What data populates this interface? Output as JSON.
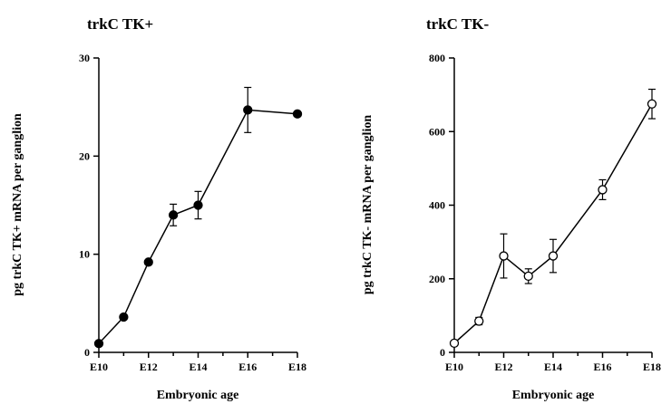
{
  "chart_data": [
    {
      "type": "line",
      "title": "trkC TK+",
      "xlabel": "Embryonic age",
      "ylabel": "pg trkC TK+ mRNA per ganglion",
      "x_tick_labels": [
        "E10",
        "E12",
        "E14",
        "E16",
        "E18"
      ],
      "x_ticks": [
        10,
        12,
        14,
        16,
        18
      ],
      "xlim": [
        10,
        18
      ],
      "ylim": [
        0,
        30
      ],
      "y_ticks": [
        0,
        10,
        20,
        30
      ],
      "marker": "filled-circle",
      "series": [
        {
          "x": [
            10,
            11,
            12,
            13,
            14,
            16,
            18
          ],
          "y": [
            0.9,
            3.6,
            9.2,
            14.0,
            15.0,
            24.7,
            24.3
          ],
          "err": [
            0,
            0,
            0,
            1.1,
            1.4,
            2.3,
            0
          ]
        }
      ]
    },
    {
      "type": "line",
      "title": "trkC TK-",
      "xlabel": "Embryonic age",
      "ylabel": "pg trkC TK- mRNA per ganglion",
      "x_tick_labels": [
        "E10",
        "E12",
        "E14",
        "E16",
        "E18"
      ],
      "x_ticks": [
        10,
        12,
        14,
        16,
        18
      ],
      "xlim": [
        10,
        18
      ],
      "ylim": [
        0,
        800
      ],
      "y_ticks": [
        0,
        200,
        400,
        600,
        800
      ],
      "marker": "open-circle",
      "series": [
        {
          "x": [
            10,
            11,
            12,
            13,
            14,
            16,
            18
          ],
          "y": [
            25,
            85,
            262,
            207,
            262,
            442,
            675
          ],
          "err": [
            0,
            10,
            60,
            20,
            45,
            27,
            40
          ]
        }
      ]
    }
  ]
}
